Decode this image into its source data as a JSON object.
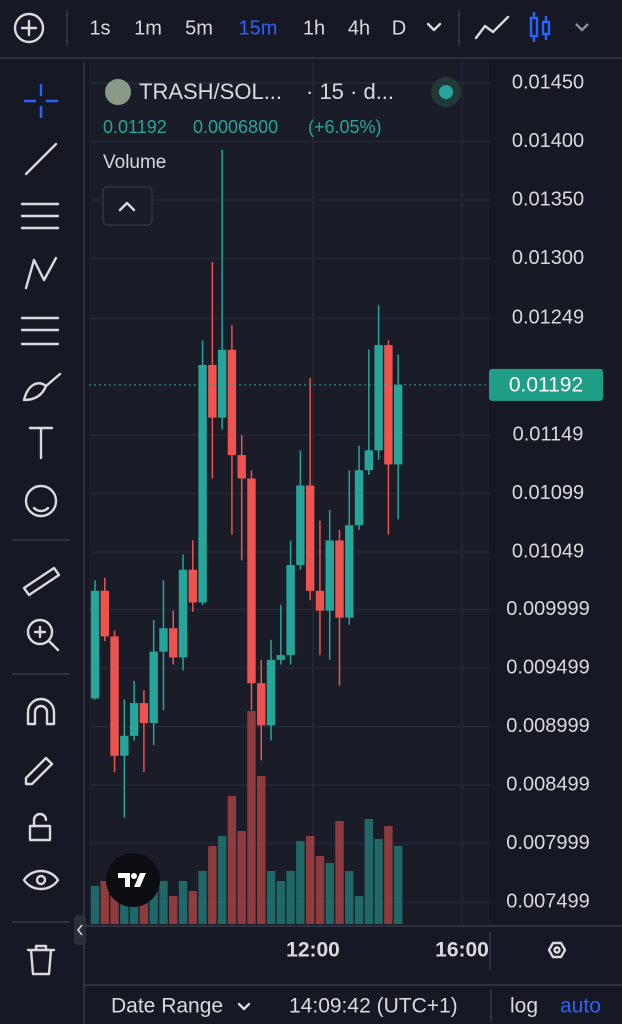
{
  "toolbar": {
    "intervals": [
      "1s",
      "1m",
      "5m",
      "15m",
      "1h",
      "4h",
      "D"
    ]
  },
  "legend": {
    "symbol": "TRASH/SOL...",
    "details": "· 15 · d...",
    "price": "0.01192",
    "change": "0.0006800",
    "change_pct": "(+6.05%)",
    "volume_label": "Volume"
  },
  "chart_data": {
    "type": "candlestick",
    "up_color": "#26a69a",
    "down_color": "#ef5350",
    "open": [
      0.00924,
      0.01016,
      0.00977,
      0.00875,
      0.00892,
      0.0092,
      0.00903,
      0.00964,
      0.00984,
      0.00959,
      0.01034,
      0.01006,
      0.01209,
      0.01164,
      0.01222,
      0.01132,
      0.01112,
      0.00937,
      0.00901,
      0.00957,
      0.00961,
      0.01038,
      0.01106,
      0.01016,
      0.00999,
      0.01059,
      0.00993,
      0.01072,
      0.01119,
      0.01136,
      0.01226,
      0.01124
    ],
    "high": [
      0.01025,
      0.01027,
      0.00982,
      0.00923,
      0.00939,
      0.00931,
      0.00991,
      0.01025,
      0.00999,
      0.01047,
      0.01059,
      0.0123,
      0.01297,
      0.01393,
      0.01243,
      0.01149,
      0.01119,
      0.00957,
      0.00974,
      0.01004,
      0.01059,
      0.01136,
      0.01198,
      0.01076,
      0.01085,
      0.01068,
      0.01119,
      0.0114,
      0.01222,
      0.0126,
      0.0123,
      0.01218
    ],
    "low": [
      0.00923,
      0.00973,
      0.00861,
      0.00822,
      0.00888,
      0.00861,
      0.00884,
      0.00914,
      0.00953,
      0.00948,
      0.00998,
      0.01004,
      0.01112,
      0.01154,
      0.01064,
      0.01042,
      0.00914,
      0.00871,
      0.00888,
      0.00953,
      0.00953,
      0.01034,
      0.01008,
      0.00961,
      0.00957,
      0.00935,
      0.00987,
      0.01068,
      0.01115,
      0.01128,
      0.01064,
      0.01077
    ],
    "close": [
      0.01016,
      0.00977,
      0.00875,
      0.00892,
      0.0092,
      0.00903,
      0.00964,
      0.00984,
      0.00959,
      0.01034,
      0.01006,
      0.01209,
      0.01164,
      0.01222,
      0.01132,
      0.01112,
      0.00937,
      0.00901,
      0.00957,
      0.00961,
      0.01038,
      0.01106,
      0.01016,
      0.00999,
      0.01059,
      0.00993,
      0.01072,
      0.01119,
      0.01136,
      0.01226,
      0.01124,
      0.01192
    ],
    "volume": [
      38,
      43,
      33,
      28,
      33,
      28,
      33,
      43,
      28,
      43,
      33,
      53,
      78,
      88,
      128,
      93,
      213,
      148,
      53,
      43,
      53,
      83,
      88,
      68,
      61,
      103,
      53,
      28,
      105,
      85,
      98,
      78
    ],
    "ylim": [
      0.0073,
      0.0147
    ],
    "yticks": [
      {
        "value": 0.0145,
        "label": "0.01450"
      },
      {
        "value": 0.014,
        "label": "0.01400"
      },
      {
        "value": 0.0135,
        "label": "0.01350"
      },
      {
        "value": 0.013,
        "label": "0.01300"
      },
      0.01249,
      0.01149,
      0.01099,
      0.01049,
      0.009999,
      0.009499,
      0.008999,
      0.008499,
      0.007999,
      0.007499
    ],
    "xticks": [
      "12:00",
      "16:00"
    ],
    "last_price": {
      "value": 0.01192,
      "label": "0.01192"
    },
    "grid": true
  },
  "footer": {
    "date_range": "Date Range",
    "time": "14:09:42 (UTC+1)",
    "log": "log",
    "auto": "auto"
  }
}
